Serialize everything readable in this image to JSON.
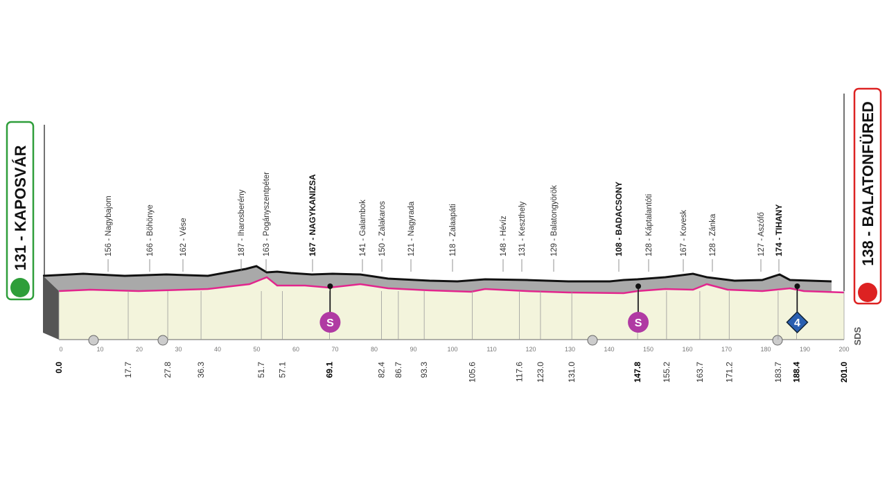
{
  "start": {
    "label": "131 - KAPOSVÁR"
  },
  "finish": {
    "label": "138 - BALATONFÜRED"
  },
  "places": [
    {
      "label": "156 - Nagybajom",
      "bold": false
    },
    {
      "label": "166 - Böhönye",
      "bold": false
    },
    {
      "label": "162 - Vése",
      "bold": false
    },
    {
      "label": "187 - Iharosberény",
      "bold": false
    },
    {
      "label": "163 - Pogányszentpéter",
      "bold": false
    },
    {
      "label": "167 - NAGYKANIZSA",
      "bold": true
    },
    {
      "label": "141 - Galambok",
      "bold": false
    },
    {
      "label": "150 - Zalakaros",
      "bold": false
    },
    {
      "label": "121 - Nagyrada",
      "bold": false
    },
    {
      "label": "118 - Zalaapáti",
      "bold": false
    },
    {
      "label": "148 - Hévíz",
      "bold": false
    },
    {
      "label": "131 - Keszthely",
      "bold": false
    },
    {
      "label": "129 - Balatongyörök",
      "bold": false
    },
    {
      "label": "108 - BADACSONY",
      "bold": true
    },
    {
      "label": "128 - Káptalantóti",
      "bold": false
    },
    {
      "label": "167 - Kovesk",
      "bold": false
    },
    {
      "label": "128 - Zánka",
      "bold": false
    },
    {
      "label": "127 - Aszófő",
      "bold": false
    },
    {
      "label": "174 - TIHANY",
      "bold": true
    }
  ],
  "distances": [
    {
      "km": "0.0",
      "bold": true
    },
    {
      "km": "17.7",
      "bold": false
    },
    {
      "km": "27.8",
      "bold": false
    },
    {
      "km": "36.3",
      "bold": false
    },
    {
      "km": "51.7",
      "bold": false
    },
    {
      "km": "57.1",
      "bold": false
    },
    {
      "km": "69.1",
      "bold": true
    },
    {
      "km": "82.4",
      "bold": false
    },
    {
      "km": "86.7",
      "bold": false
    },
    {
      "km": "93.3",
      "bold": false
    },
    {
      "km": "105.6",
      "bold": false
    },
    {
      "km": "117.6",
      "bold": false
    },
    {
      "km": "123.0",
      "bold": false
    },
    {
      "km": "131.0",
      "bold": false
    },
    {
      "km": "147.8",
      "bold": true
    },
    {
      "km": "155.2",
      "bold": false
    },
    {
      "km": "163.7",
      "bold": false
    },
    {
      "km": "171.2",
      "bold": false
    },
    {
      "km": "183.7",
      "bold": false
    },
    {
      "km": "188.4",
      "bold": true
    },
    {
      "km": "201.0",
      "bold": true
    }
  ],
  "axis_ticks": [
    "0",
    "10",
    "20",
    "30",
    "40",
    "50",
    "60",
    "70",
    "80",
    "90",
    "100",
    "110",
    "120",
    "130",
    "140",
    "150",
    "160",
    "170",
    "180",
    "190",
    "200"
  ],
  "markers": [
    "S",
    "S",
    "4"
  ],
  "logo": "SDS"
}
